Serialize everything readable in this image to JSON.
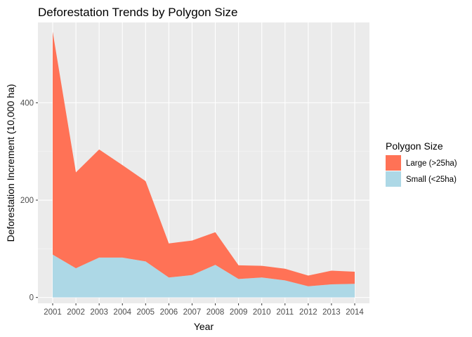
{
  "chart_data": {
    "type": "area",
    "stacked": true,
    "title": "Deforestation Trends by Polygon Size",
    "xlabel": "Year",
    "ylabel": "Deforestation Increment (10,000 ha)",
    "x": [
      "2001",
      "2002",
      "2003",
      "2004",
      "2005",
      "2006",
      "2007",
      "2008",
      "2009",
      "2010",
      "2011",
      "2012",
      "2013",
      "2014"
    ],
    "ylim": [
      -12,
      565
    ],
    "yticks": [
      0,
      200,
      400
    ],
    "grid": true,
    "legend": {
      "title": "Polygon Size",
      "position": "right"
    },
    "series": [
      {
        "name": "Small (<25ha)",
        "color": "#ADD8E6",
        "values": [
          88,
          60,
          82,
          82,
          74,
          41,
          46,
          67,
          38,
          41,
          35,
          23,
          27,
          28
        ]
      },
      {
        "name": "Large (>25ha)",
        "color": "#FF7256",
        "values": [
          458,
          197,
          222,
          190,
          165,
          70,
          71,
          67,
          28,
          24,
          24,
          22,
          28,
          25
        ]
      }
    ]
  }
}
